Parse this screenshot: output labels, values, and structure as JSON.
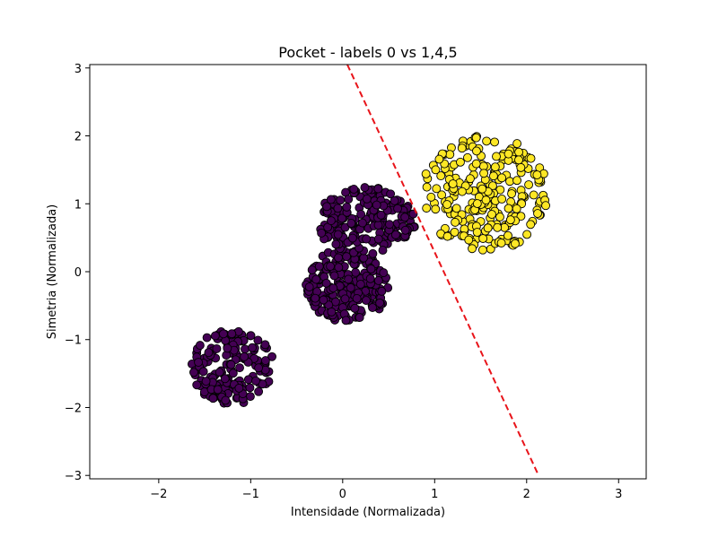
{
  "chart_data": {
    "type": "scatter",
    "title": "Pocket - labels 0 vs 1,4,5",
    "xlabel": "Intensidade (Normalizada)",
    "ylabel": "Simetria (Normalizada)",
    "xlim": [
      -2.75,
      3.3
    ],
    "ylim": [
      -3.05,
      3.05
    ],
    "xticks": [
      {
        "value": -2,
        "label": "−2"
      },
      {
        "value": -1,
        "label": "−1"
      },
      {
        "value": 0,
        "label": "0"
      },
      {
        "value": 1,
        "label": "1"
      },
      {
        "value": 2,
        "label": "2"
      },
      {
        "value": 3,
        "label": "3"
      }
    ],
    "yticks": [
      {
        "value": -3,
        "label": "−3"
      },
      {
        "value": -2,
        "label": "−2"
      },
      {
        "value": -1,
        "label": "−1"
      },
      {
        "value": 0,
        "label": "0"
      },
      {
        "value": 1,
        "label": "1"
      },
      {
        "value": 2,
        "label": "2"
      },
      {
        "value": 3,
        "label": "3"
      }
    ],
    "grid": false,
    "series": [
      {
        "color": "#440154",
        "marker": "circle",
        "clusters": [
          {
            "cx": -1.2,
            "cy": -1.4,
            "rx": 0.45,
            "ry": 0.55,
            "n": 170
          },
          {
            "cx": 0.05,
            "cy": -0.2,
            "rx": 0.45,
            "ry": 0.55,
            "n": 220
          },
          {
            "cx": 0.25,
            "cy": 0.75,
            "rx": 0.55,
            "ry": 0.5,
            "n": 200
          }
        ]
      },
      {
        "color": "#fde725",
        "marker": "circle",
        "clusters": [
          {
            "cx": 1.55,
            "cy": 1.15,
            "rx": 0.7,
            "ry": 0.85,
            "n": 240
          }
        ]
      }
    ],
    "decision_line": {
      "color": "#e8141a",
      "style": "dashed",
      "points": [
        [
          0.05,
          3.05
        ],
        [
          2.13,
          -3.0
        ]
      ]
    }
  }
}
